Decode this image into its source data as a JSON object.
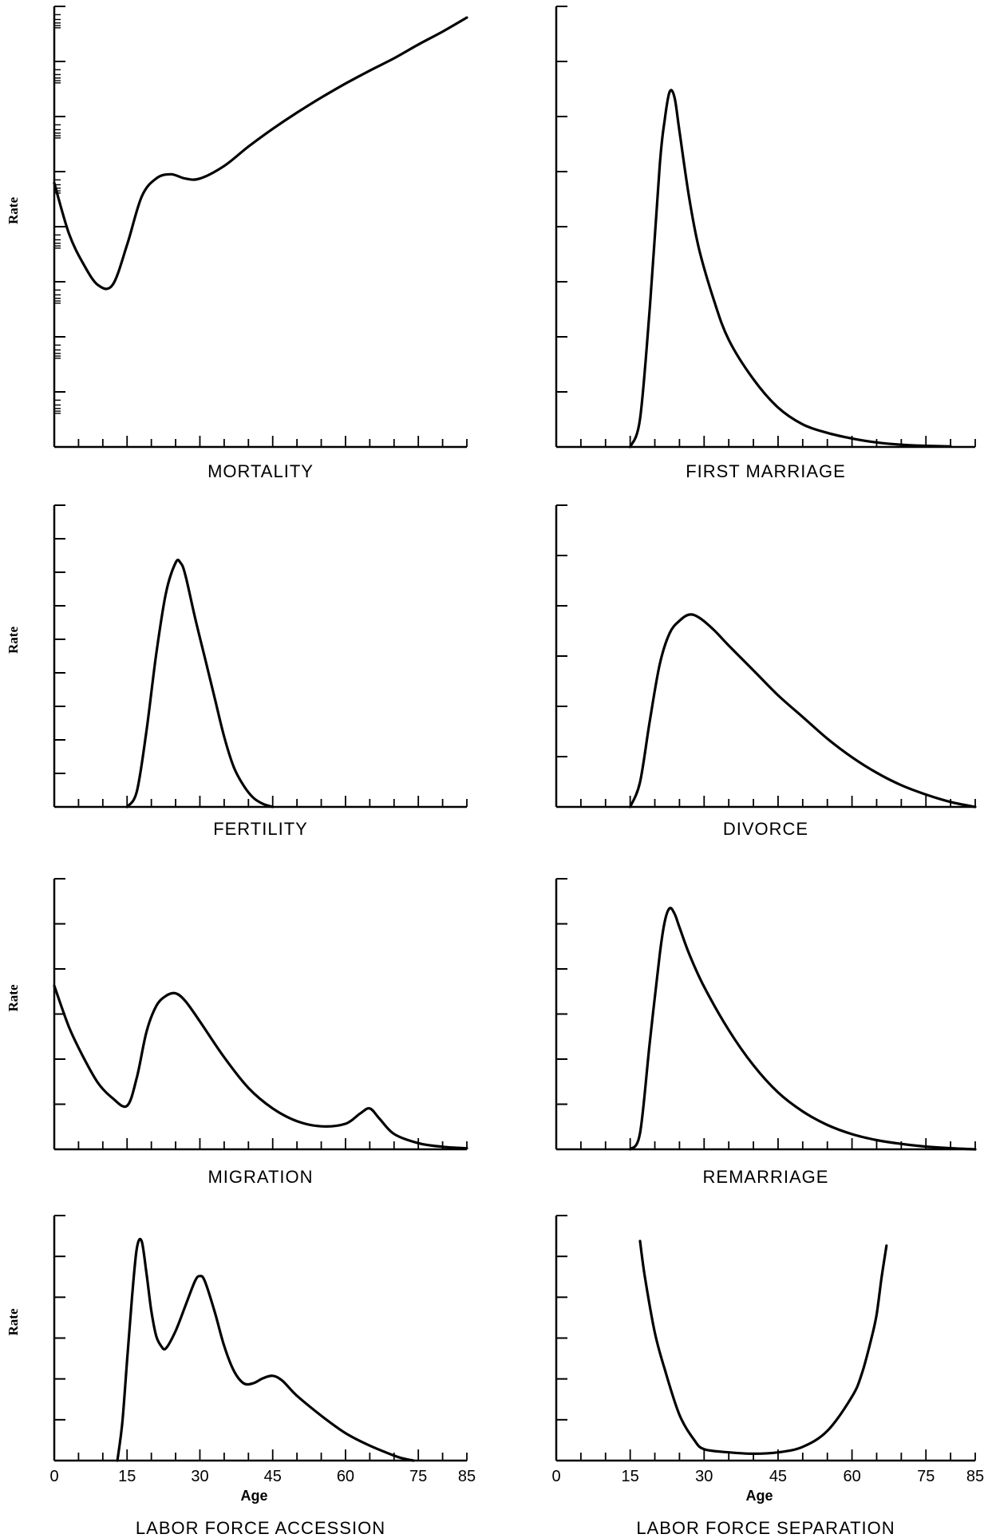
{
  "chart_data": [
    {
      "type": "line",
      "title": "MORTALITY",
      "xlabel": "",
      "ylabel": "Rate",
      "y_scale": "log",
      "xlim": [
        0,
        85
      ],
      "x": [
        0,
        3,
        6,
        9,
        12,
        15,
        18,
        21,
        24,
        27,
        30,
        35,
        40,
        45,
        50,
        55,
        60,
        65,
        70,
        75,
        80,
        85
      ],
      "y": [
        4.5,
        3.5,
        3.0,
        2.7,
        2.7,
        3.3,
        4.2,
        4.6,
        4.7,
        4.6,
        4.6,
        4.9,
        5.4,
        5.9,
        6.4,
        6.9,
        7.4,
        7.9,
        8.4,
        9.0,
        9.6,
        10.3
      ]
    },
    {
      "type": "line",
      "title": "FIRST MARRIAGE",
      "xlabel": "",
      "ylabel": "",
      "xlim": [
        0,
        85
      ],
      "x": [
        15,
        17,
        19,
        21,
        22,
        23,
        24,
        25,
        27,
        29,
        32,
        35,
        40,
        45,
        50,
        55,
        60,
        65,
        70,
        75,
        80
      ],
      "y": [
        0,
        0.5,
        2.5,
        5.0,
        5.8,
        6.3,
        6.2,
        5.6,
        4.4,
        3.5,
        2.6,
        1.9,
        1.2,
        0.7,
        0.4,
        0.25,
        0.15,
        0.08,
        0.04,
        0.02,
        0.01
      ]
    },
    {
      "type": "line",
      "title": "FERTILITY",
      "xlabel": "",
      "ylabel": "Rate",
      "xlim": [
        0,
        85
      ],
      "x": [
        15,
        17,
        19,
        21,
        23,
        25,
        26,
        27,
        29,
        31,
        33,
        35,
        37,
        39,
        41,
        43,
        45
      ],
      "y": [
        0,
        0.5,
        2.5,
        5.0,
        7.0,
        8.0,
        8.0,
        7.6,
        6.2,
        4.9,
        3.6,
        2.3,
        1.3,
        0.7,
        0.3,
        0.1,
        0
      ]
    },
    {
      "type": "line",
      "title": "DIVORCE",
      "xlabel": "",
      "ylabel": "",
      "xlim": [
        0,
        85
      ],
      "x": [
        15,
        17,
        19,
        21,
        23,
        25,
        27,
        29,
        32,
        35,
        40,
        45,
        50,
        55,
        60,
        65,
        70,
        75,
        80,
        85
      ],
      "y": [
        0,
        0.4,
        1.4,
        2.3,
        2.8,
        3.0,
        3.1,
        3.05,
        2.85,
        2.6,
        2.2,
        1.8,
        1.45,
        1.1,
        0.8,
        0.55,
        0.35,
        0.2,
        0.08,
        0
      ]
    },
    {
      "type": "line",
      "title": "MIGRATION",
      "xlabel": "",
      "ylabel": "Rate",
      "xlim": [
        0,
        85
      ],
      "x": [
        0,
        3,
        6,
        9,
        12,
        15,
        17,
        19,
        21,
        23,
        25,
        27,
        30,
        35,
        40,
        45,
        50,
        55,
        60,
        63,
        65,
        67,
        70,
        75,
        80,
        85
      ],
      "y": [
        3.2,
        2.4,
        1.8,
        1.3,
        1.0,
        0.85,
        1.4,
        2.3,
        2.8,
        3.0,
        3.05,
        2.9,
        2.5,
        1.8,
        1.2,
        0.8,
        0.55,
        0.45,
        0.5,
        0.7,
        0.8,
        0.6,
        0.3,
        0.12,
        0.05,
        0.02
      ]
    },
    {
      "type": "line",
      "title": "REMARRIAGE",
      "xlabel": "",
      "ylabel": "",
      "xlim": [
        0,
        85
      ],
      "x": [
        15,
        17,
        19,
        21,
        22,
        23,
        24,
        25,
        27,
        30,
        35,
        40,
        45,
        50,
        55,
        60,
        65,
        70,
        75,
        80,
        85
      ],
      "y": [
        0,
        0.3,
        2.0,
        3.6,
        4.2,
        4.45,
        4.35,
        4.1,
        3.6,
        3.0,
        2.2,
        1.55,
        1.05,
        0.7,
        0.45,
        0.28,
        0.17,
        0.1,
        0.05,
        0.02,
        0
      ]
    },
    {
      "type": "line",
      "title": "LABOR FORCE ACCESSION",
      "xlabel": "Age",
      "ylabel": "Rate",
      "xlim": [
        0,
        85
      ],
      "xticks": [
        0,
        15,
        30,
        45,
        60,
        75,
        85
      ],
      "x": [
        13,
        14,
        15,
        16,
        17,
        18,
        19,
        20,
        21,
        22,
        23,
        25,
        27,
        29,
        30,
        31,
        33,
        35,
        37,
        39,
        41,
        43,
        45,
        47,
        50,
        55,
        60,
        65,
        70,
        72,
        74
      ],
      "y": [
        0,
        1.5,
        4.0,
        6.5,
        8.5,
        8.8,
        7.5,
        6.0,
        5.0,
        4.6,
        4.5,
        5.2,
        6.2,
        7.2,
        7.4,
        7.2,
        6.0,
        4.6,
        3.6,
        3.1,
        3.1,
        3.3,
        3.4,
        3.2,
        2.6,
        1.8,
        1.1,
        0.6,
        0.2,
        0.08,
        0
      ]
    },
    {
      "type": "line",
      "title": "LABOR FORCE SEPARATION",
      "xlabel": "Age",
      "ylabel": "",
      "xlim": [
        0,
        85
      ],
      "xticks": [
        0,
        15,
        30,
        45,
        60,
        75,
        85
      ],
      "x": [
        17,
        18,
        20,
        22,
        25,
        28,
        30,
        35,
        40,
        45,
        50,
        55,
        60,
        62,
        64,
        65,
        66,
        67
      ],
      "y": [
        4.8,
        4.0,
        2.8,
        2.0,
        1.0,
        0.45,
        0.25,
        0.18,
        0.15,
        0.18,
        0.3,
        0.65,
        1.4,
        1.9,
        2.7,
        3.2,
        4.0,
        4.7
      ]
    }
  ]
}
